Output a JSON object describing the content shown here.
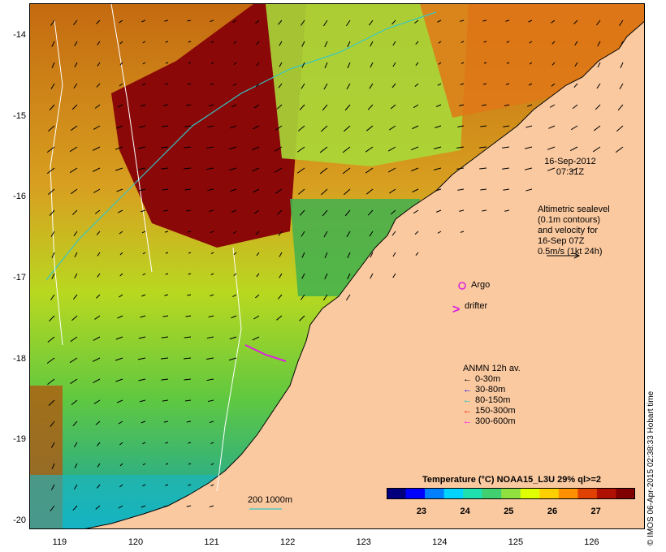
{
  "map": {
    "y_ticks": [
      "-14",
      "-15",
      "-16",
      "-17",
      "-18",
      "-19",
      "-20"
    ],
    "x_ticks": [
      "119",
      "120",
      "121",
      "122",
      "123",
      "124",
      "125",
      "126"
    ],
    "lat_range": [
      -20.1,
      -13.6
    ],
    "lon_range": [
      118.6,
      126.7
    ],
    "colors": {
      "land": "#fac9a0",
      "outline": "#000000",
      "contour": "#ffffff",
      "isobath": "#36c6c8"
    }
  },
  "timestamp": {
    "date": "16-Sep-2012",
    "time": "07:31Z"
  },
  "altimetry_note": [
    "Altimetric sealevel",
    "(0.1m contours)",
    "and velocity for",
    "16-Sep 07Z",
    "0.5m/s (1kt 24h)"
  ],
  "markers": {
    "argo_label": "Argo",
    "drifter_label": "drifter",
    "argo_color": "#e01ee0",
    "drifter_color": "#e01ee0"
  },
  "anmn_legend": {
    "title": "ANMN 12h av.",
    "items": [
      {
        "label": "0-30m",
        "color": "#000000"
      },
      {
        "label": "30-80m",
        "color": "#0000ff"
      },
      {
        "label": "80-150m",
        "color": "#00c8c8"
      },
      {
        "label": "150-300m",
        "color": "#ff0000"
      },
      {
        "label": "300-600m",
        "color": "#ff00ff"
      }
    ]
  },
  "isobath_legend": "200  1000m",
  "colorbar": {
    "title": "Temperature (°C) NOAA15_L3U 29% ql>=2",
    "ticks": [
      "23",
      "24",
      "25",
      "26",
      "27"
    ],
    "range": [
      22.2,
      27.9
    ],
    "stops": [
      "#00007f",
      "#0000ff",
      "#0080ff",
      "#00d4ff",
      "#20e0b0",
      "#40d070",
      "#90e040",
      "#e0ff00",
      "#ffd000",
      "#ff9000",
      "#e04000",
      "#b01000",
      "#800000"
    ]
  },
  "credit": "© IMOS 06-Apr-2015 02:38:33 Hobart time"
}
